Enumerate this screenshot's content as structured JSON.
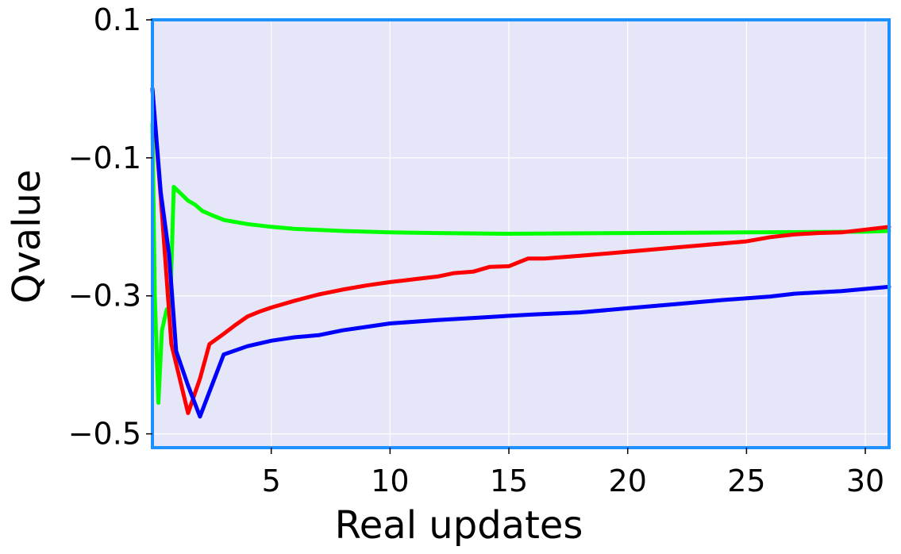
{
  "chart_data": {
    "type": "line",
    "title": "",
    "xlabel": "Real updates",
    "ylabel": "Qvalue",
    "xlim": [
      0,
      31
    ],
    "ylim": [
      -0.52,
      0.1
    ],
    "x_ticks": [
      5,
      10,
      15,
      20,
      25,
      30
    ],
    "x_tick_labels": [
      "5",
      "10",
      "15",
      "20",
      "25",
      "30"
    ],
    "y_ticks": [
      0.1,
      -0.1,
      -0.3,
      -0.5
    ],
    "y_tick_labels": [
      "0.1",
      "−0.1",
      "−0.3",
      "−0.5"
    ],
    "grid": true,
    "legend": "none",
    "colors": {
      "plot_background": "#e5e6f8",
      "frame": "#1e90ff",
      "grid": "#ffffff"
    },
    "series": [
      {
        "color": "#0000ff",
        "x": [
          0,
          0.35,
          0.7,
          1.0,
          1.5,
          2.0,
          2.5,
          3.0,
          4,
          5,
          6,
          7,
          8,
          9,
          10,
          12,
          14,
          16,
          18,
          20,
          22,
          24,
          26,
          27,
          28,
          29,
          30,
          31
        ],
        "y": [
          0.0,
          -0.15,
          -0.24,
          -0.38,
          -0.43,
          -0.475,
          -0.43,
          -0.385,
          -0.373,
          -0.365,
          -0.36,
          -0.357,
          -0.35,
          -0.345,
          -0.34,
          -0.335,
          -0.331,
          -0.327,
          -0.324,
          -0.318,
          -0.312,
          -0.306,
          -0.301,
          -0.297,
          -0.295,
          -0.293,
          -0.29,
          -0.287
        ]
      },
      {
        "color": "#ff0000",
        "x": [
          0,
          0.4,
          0.8,
          1.5,
          2.0,
          2.4,
          3.0,
          3.5,
          4,
          4.5,
          5,
          6,
          7,
          8,
          9,
          10,
          11,
          12,
          12.7,
          13.5,
          14.2,
          15,
          15.8,
          16.5,
          18,
          20,
          22,
          24,
          25,
          26,
          27,
          28,
          29,
          30,
          31
        ],
        "y": [
          0.0,
          -0.18,
          -0.37,
          -0.47,
          -0.42,
          -0.37,
          -0.355,
          -0.342,
          -0.33,
          -0.323,
          -0.317,
          -0.307,
          -0.298,
          -0.291,
          -0.285,
          -0.28,
          -0.276,
          -0.272,
          -0.267,
          -0.265,
          -0.258,
          -0.257,
          -0.246,
          -0.246,
          -0.242,
          -0.236,
          -0.23,
          -0.224,
          -0.221,
          -0.215,
          -0.211,
          -0.209,
          -0.208,
          -0.204,
          -0.2
        ]
      },
      {
        "color": "#00ff00",
        "x": [
          0,
          0.1,
          0.25,
          0.4,
          0.6,
          0.75,
          0.9,
          1.2,
          1.5,
          1.8,
          2.1,
          2.5,
          3,
          4,
          5,
          6,
          8,
          10,
          12,
          15,
          20,
          25,
          30,
          31
        ],
        "y": [
          -0.05,
          -0.3,
          -0.455,
          -0.35,
          -0.32,
          -0.315,
          -0.142,
          -0.152,
          -0.162,
          -0.168,
          -0.177,
          -0.183,
          -0.19,
          -0.196,
          -0.2,
          -0.203,
          -0.206,
          -0.208,
          -0.209,
          -0.21,
          -0.209,
          -0.208,
          -0.207,
          -0.206
        ]
      }
    ]
  }
}
